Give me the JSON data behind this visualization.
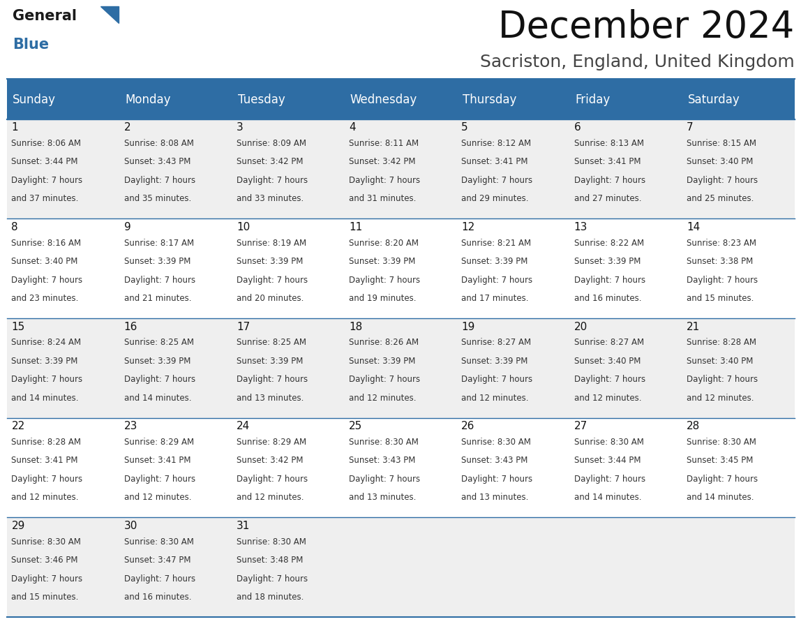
{
  "title": "December 2024",
  "subtitle": "Sacriston, England, United Kingdom",
  "header_color": "#2E6DA4",
  "header_text_color": "#FFFFFF",
  "day_names": [
    "Sunday",
    "Monday",
    "Tuesday",
    "Wednesday",
    "Thursday",
    "Friday",
    "Saturday"
  ],
  "weeks": [
    [
      {
        "day": 1,
        "sunrise": "8:06 AM",
        "sunset": "3:44 PM",
        "daylight": "7 hours\nand 37 minutes."
      },
      {
        "day": 2,
        "sunrise": "8:08 AM",
        "sunset": "3:43 PM",
        "daylight": "7 hours\nand 35 minutes."
      },
      {
        "day": 3,
        "sunrise": "8:09 AM",
        "sunset": "3:42 PM",
        "daylight": "7 hours\nand 33 minutes."
      },
      {
        "day": 4,
        "sunrise": "8:11 AM",
        "sunset": "3:42 PM",
        "daylight": "7 hours\nand 31 minutes."
      },
      {
        "day": 5,
        "sunrise": "8:12 AM",
        "sunset": "3:41 PM",
        "daylight": "7 hours\nand 29 minutes."
      },
      {
        "day": 6,
        "sunrise": "8:13 AM",
        "sunset": "3:41 PM",
        "daylight": "7 hours\nand 27 minutes."
      },
      {
        "day": 7,
        "sunrise": "8:15 AM",
        "sunset": "3:40 PM",
        "daylight": "7 hours\nand 25 minutes."
      }
    ],
    [
      {
        "day": 8,
        "sunrise": "8:16 AM",
        "sunset": "3:40 PM",
        "daylight": "7 hours\nand 23 minutes."
      },
      {
        "day": 9,
        "sunrise": "8:17 AM",
        "sunset": "3:39 PM",
        "daylight": "7 hours\nand 21 minutes."
      },
      {
        "day": 10,
        "sunrise": "8:19 AM",
        "sunset": "3:39 PM",
        "daylight": "7 hours\nand 20 minutes."
      },
      {
        "day": 11,
        "sunrise": "8:20 AM",
        "sunset": "3:39 PM",
        "daylight": "7 hours\nand 19 minutes."
      },
      {
        "day": 12,
        "sunrise": "8:21 AM",
        "sunset": "3:39 PM",
        "daylight": "7 hours\nand 17 minutes."
      },
      {
        "day": 13,
        "sunrise": "8:22 AM",
        "sunset": "3:39 PM",
        "daylight": "7 hours\nand 16 minutes."
      },
      {
        "day": 14,
        "sunrise": "8:23 AM",
        "sunset": "3:38 PM",
        "daylight": "7 hours\nand 15 minutes."
      }
    ],
    [
      {
        "day": 15,
        "sunrise": "8:24 AM",
        "sunset": "3:39 PM",
        "daylight": "7 hours\nand 14 minutes."
      },
      {
        "day": 16,
        "sunrise": "8:25 AM",
        "sunset": "3:39 PM",
        "daylight": "7 hours\nand 14 minutes."
      },
      {
        "day": 17,
        "sunrise": "8:25 AM",
        "sunset": "3:39 PM",
        "daylight": "7 hours\nand 13 minutes."
      },
      {
        "day": 18,
        "sunrise": "8:26 AM",
        "sunset": "3:39 PM",
        "daylight": "7 hours\nand 12 minutes."
      },
      {
        "day": 19,
        "sunrise": "8:27 AM",
        "sunset": "3:39 PM",
        "daylight": "7 hours\nand 12 minutes."
      },
      {
        "day": 20,
        "sunrise": "8:27 AM",
        "sunset": "3:40 PM",
        "daylight": "7 hours\nand 12 minutes."
      },
      {
        "day": 21,
        "sunrise": "8:28 AM",
        "sunset": "3:40 PM",
        "daylight": "7 hours\nand 12 minutes."
      }
    ],
    [
      {
        "day": 22,
        "sunrise": "8:28 AM",
        "sunset": "3:41 PM",
        "daylight": "7 hours\nand 12 minutes."
      },
      {
        "day": 23,
        "sunrise": "8:29 AM",
        "sunset": "3:41 PM",
        "daylight": "7 hours\nand 12 minutes."
      },
      {
        "day": 24,
        "sunrise": "8:29 AM",
        "sunset": "3:42 PM",
        "daylight": "7 hours\nand 12 minutes."
      },
      {
        "day": 25,
        "sunrise": "8:30 AM",
        "sunset": "3:43 PM",
        "daylight": "7 hours\nand 13 minutes."
      },
      {
        "day": 26,
        "sunrise": "8:30 AM",
        "sunset": "3:43 PM",
        "daylight": "7 hours\nand 13 minutes."
      },
      {
        "day": 27,
        "sunrise": "8:30 AM",
        "sunset": "3:44 PM",
        "daylight": "7 hours\nand 14 minutes."
      },
      {
        "day": 28,
        "sunrise": "8:30 AM",
        "sunset": "3:45 PM",
        "daylight": "7 hours\nand 14 minutes."
      }
    ],
    [
      {
        "day": 29,
        "sunrise": "8:30 AM",
        "sunset": "3:46 PM",
        "daylight": "7 hours\nand 15 minutes."
      },
      {
        "day": 30,
        "sunrise": "8:30 AM",
        "sunset": "3:47 PM",
        "daylight": "7 hours\nand 16 minutes."
      },
      {
        "day": 31,
        "sunrise": "8:30 AM",
        "sunset": "3:48 PM",
        "daylight": "7 hours\nand 18 minutes."
      },
      null,
      null,
      null,
      null
    ]
  ],
  "cell_bg_color": "#EFEFEF",
  "line_color": "#2E6DA4",
  "text_color": "#333333",
  "day_num_color": "#111111",
  "logo_color_general": "#1a1a1a",
  "logo_color_blue": "#2E6DA4",
  "title_fontsize": 38,
  "subtitle_fontsize": 18,
  "header_fontsize": 12,
  "day_num_fontsize": 11,
  "cell_fontsize": 8.5
}
